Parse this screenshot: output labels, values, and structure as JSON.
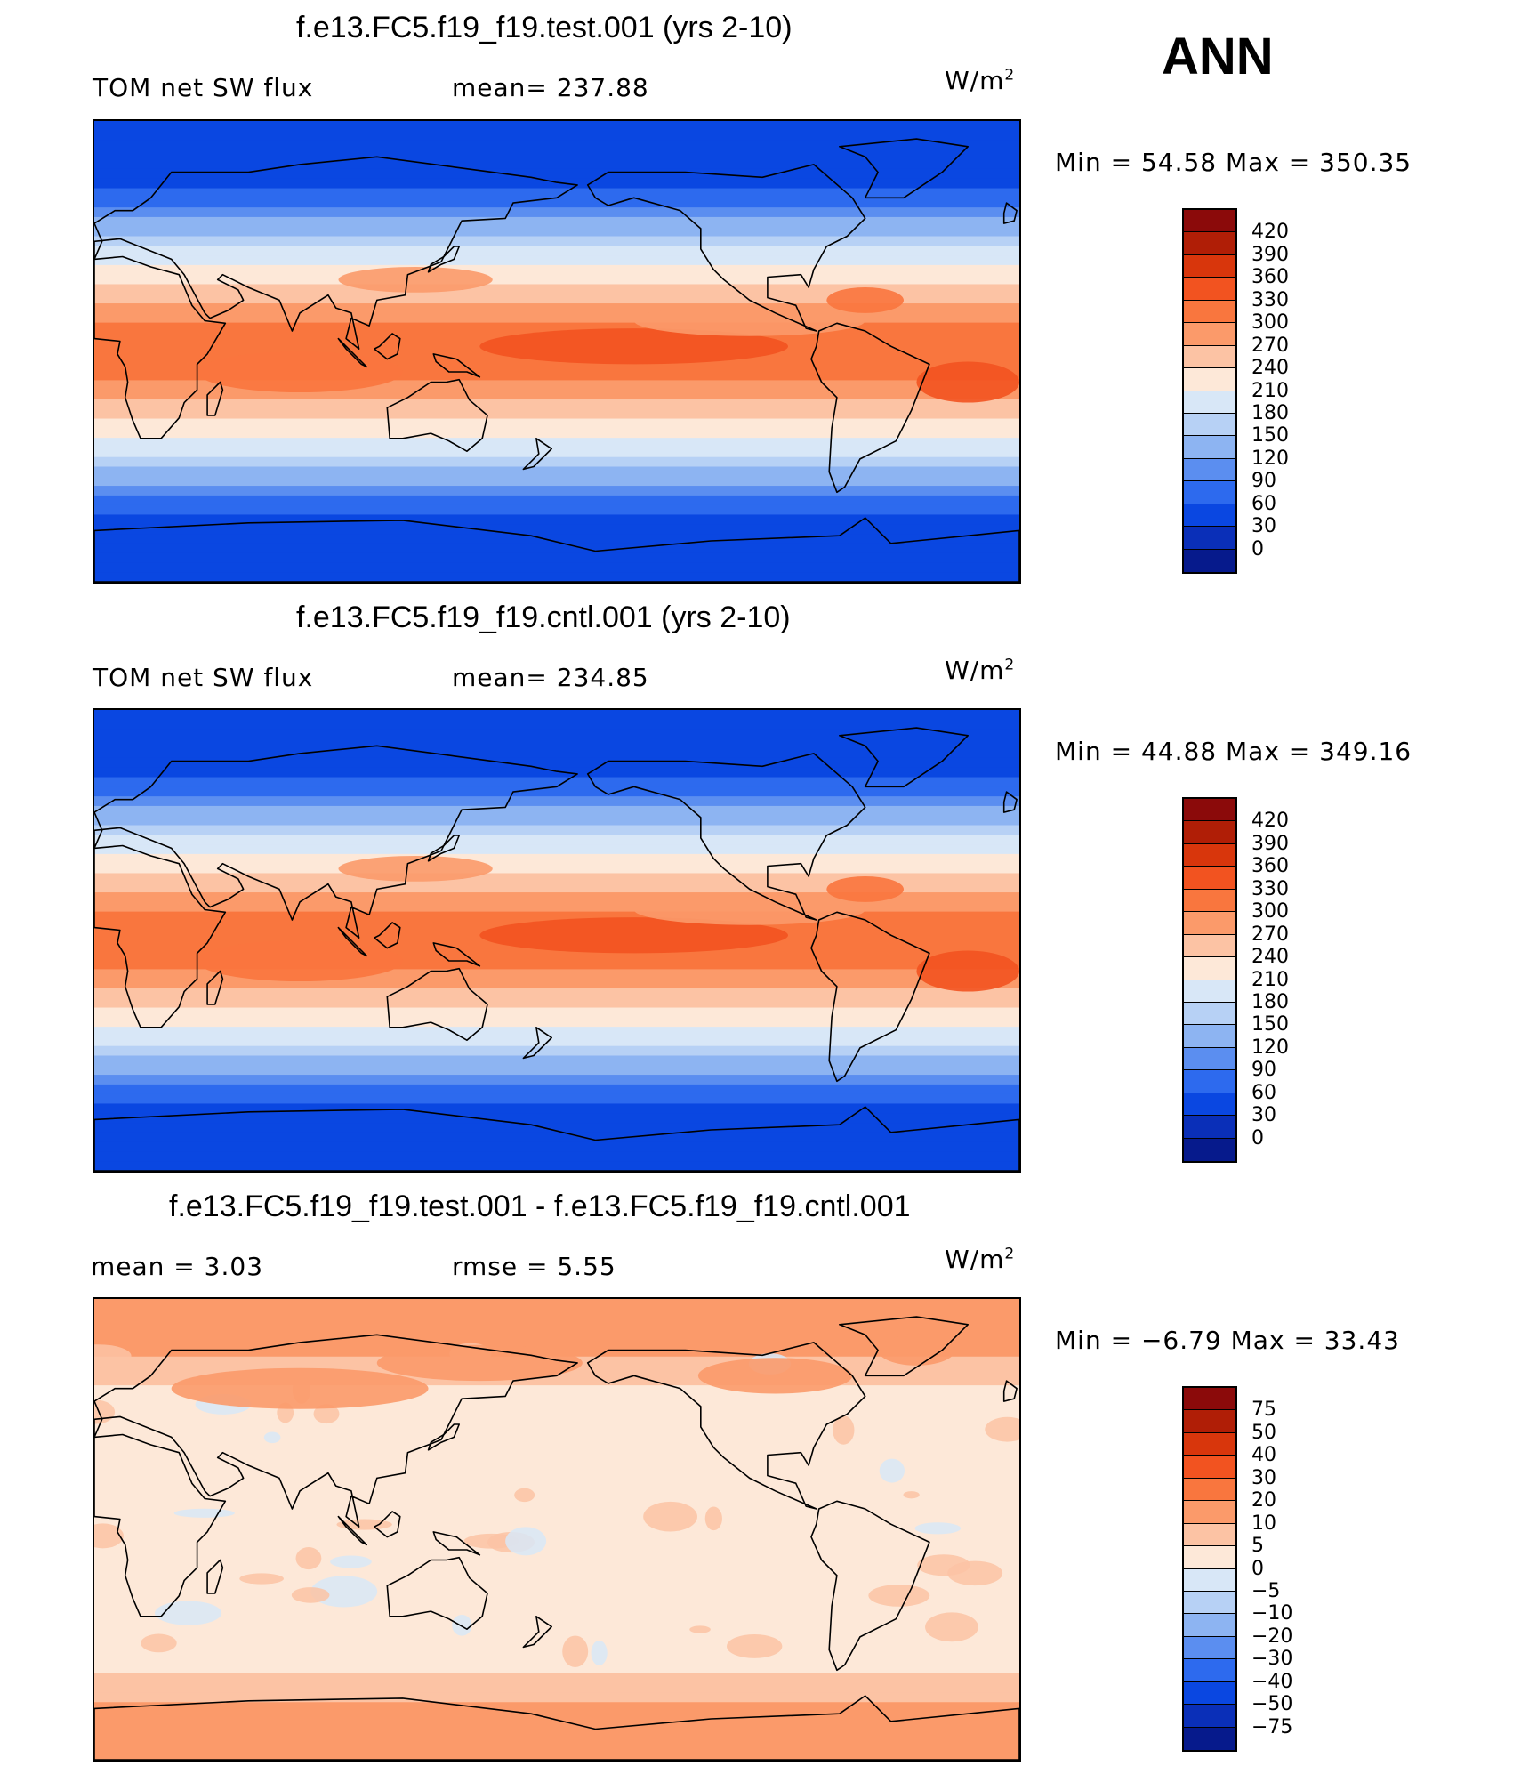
{
  "season": "ANN",
  "panels": [
    {
      "title": "f.e13.FC5.f19_f19.test.001 (yrs 2-10)",
      "left_label": "TOM net SW flux",
      "center_label": "mean=  237.88",
      "units": "W/m",
      "units_sup": "2",
      "minmax": "Min  =    54.58  Max  =  350.35"
    },
    {
      "title": "f.e13.FC5.f19_f19.cntl.001 (yrs 2-10)",
      "left_label": "TOM net SW flux",
      "center_label": "mean=  234.85",
      "units": "W/m",
      "units_sup": "2",
      "minmax": "Min  =    44.88  Max  =  349.16"
    },
    {
      "title": "f.e13.FC5.f19_f19.test.001 - f.e13.FC5.f19_f19.cntl.001",
      "left_label": "mean  =      3.03",
      "center_label": "rmse  =      5.55",
      "units": "W/m",
      "units_sup": "2",
      "minmax": "Min  =   −6.79  Max  =    33.43"
    }
  ],
  "chart_data": [
    {
      "type": "heatmap",
      "title": "f.e13.FC5.f19_f19.test.001 (yrs 2-10)",
      "variable": "TOM net SW flux",
      "units": "W/m2",
      "mean": 237.88,
      "min": 54.58,
      "max": 350.35,
      "colorbar_levels": [
        420,
        390,
        360,
        330,
        300,
        270,
        240,
        210,
        180,
        150,
        120,
        90,
        60,
        30,
        0
      ],
      "colorbar_colors": [
        "#8b0a0a",
        "#b01e06",
        "#d8360c",
        "#f25320",
        "#f9763e",
        "#fb9a6a",
        "#fcc3a4",
        "#fde8d8",
        "#d8e7f7",
        "#b7d1f5",
        "#8db4f2",
        "#5b8ef0",
        "#2d6aee",
        "#0a47e1",
        "#0a2fb8",
        "#061a8c"
      ]
    },
    {
      "type": "heatmap",
      "title": "f.e13.FC5.f19_f19.cntl.001 (yrs 2-10)",
      "variable": "TOM net SW flux",
      "units": "W/m2",
      "mean": 234.85,
      "min": 44.88,
      "max": 349.16,
      "colorbar_levels": [
        420,
        390,
        360,
        330,
        300,
        270,
        240,
        210,
        180,
        150,
        120,
        90,
        60,
        30,
        0
      ],
      "colorbar_colors": [
        "#8b0a0a",
        "#b01e06",
        "#d8360c",
        "#f25320",
        "#f9763e",
        "#fb9a6a",
        "#fcc3a4",
        "#fde8d8",
        "#d8e7f7",
        "#b7d1f5",
        "#8db4f2",
        "#5b8ef0",
        "#2d6aee",
        "#0a47e1",
        "#0a2fb8",
        "#061a8c"
      ]
    },
    {
      "type": "heatmap",
      "title": "f.e13.FC5.f19_f19.test.001 - f.e13.FC5.f19_f19.cntl.001",
      "units": "W/m2",
      "mean": 3.03,
      "rmse": 5.55,
      "min": -6.79,
      "max": 33.43,
      "colorbar_levels": [
        "75",
        "50",
        "40",
        "30",
        "20",
        "10",
        "5",
        "0",
        "−5",
        "−10",
        "−20",
        "−30",
        "−40",
        "−50",
        "−75"
      ],
      "colorbar_colors": [
        "#8b0a0a",
        "#b01e06",
        "#d8360c",
        "#f25320",
        "#f9763e",
        "#fb9a6a",
        "#fcc3a4",
        "#fde8d8",
        "#d8e7f7",
        "#b7d1f5",
        "#8db4f2",
        "#5b8ef0",
        "#2d6aee",
        "#0a47e1",
        "#0a2fb8",
        "#061a8c"
      ]
    }
  ]
}
